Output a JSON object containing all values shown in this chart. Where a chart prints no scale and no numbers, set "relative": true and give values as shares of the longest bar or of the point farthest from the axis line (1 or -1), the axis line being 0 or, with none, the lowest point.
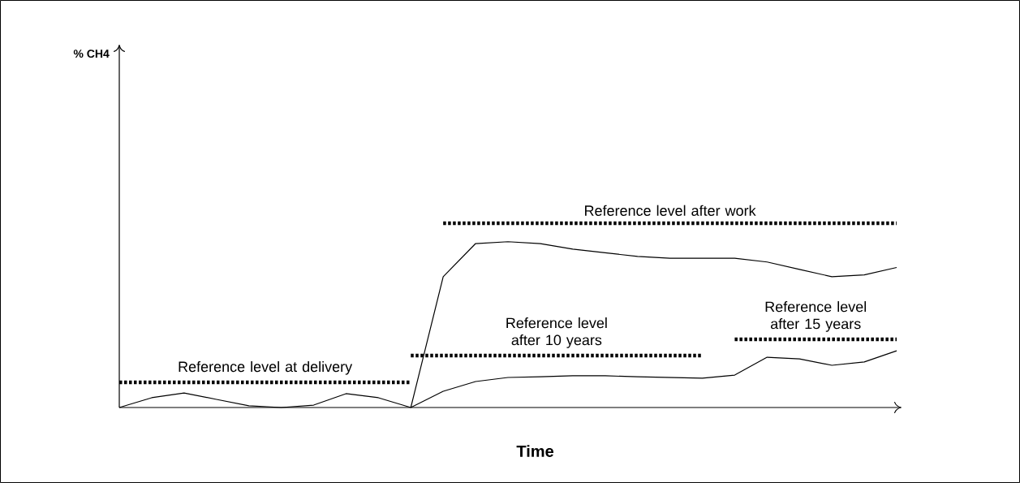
{
  "chart_data": {
    "type": "line",
    "relative": true,
    "xlabel": "Time",
    "annotations": [
      "% CH4"
    ],
    "marker": "none",
    "categories": [
      null,
      null,
      null,
      null,
      null,
      null,
      null,
      null,
      null,
      null,
      null,
      null,
      null,
      null,
      null,
      null,
      null,
      null,
      null,
      null,
      null,
      null,
      null,
      null,
      null
    ],
    "series": [
      {
        "color": "#000000",
        "line_style": "solid",
        "values": [
          0,
          0.053,
          0.079,
          0.044,
          0.009,
          0,
          0.013,
          0.075,
          0.053,
          0,
          null,
          null,
          null,
          null,
          null,
          null,
          null,
          null,
          null,
          null,
          null,
          null,
          null,
          null,
          null
        ]
      },
      {
        "color": "#000000",
        "line_style": "solid",
        "values": [
          null,
          null,
          null,
          null,
          null,
          null,
          null,
          null,
          null,
          0,
          0.71,
          0.89,
          0.9,
          0.89,
          0.86,
          0.84,
          0.82,
          0.81,
          0.81,
          0.81,
          0.79,
          0.75,
          0.71,
          0.72,
          0.76
        ]
      },
      {
        "color": "#000000",
        "line_style": "solid",
        "values": [
          null,
          null,
          null,
          null,
          null,
          null,
          null,
          null,
          null,
          0,
          0.088,
          0.141,
          0.163,
          0.167,
          0.172,
          0.172,
          0.167,
          0.163,
          0.159,
          0.176,
          0.273,
          0.264,
          0.229,
          0.247,
          0.308
        ]
      },
      {
        "name": "Reference level at delivery",
        "color": "#000000",
        "line_style": "dotted",
        "values": [
          0.137,
          0.137,
          0.137,
          0.137,
          0.137,
          0.137,
          0.137,
          0.137,
          0.137,
          0.137,
          null,
          null,
          null,
          null,
          null,
          null,
          null,
          null,
          null,
          null,
          null,
          null,
          null,
          null,
          null
        ]
      },
      {
        "name": "Reference level after work",
        "color": "#000000",
        "line_style": "dotted",
        "values": [
          null,
          null,
          null,
          null,
          null,
          null,
          null,
          null,
          null,
          null,
          1,
          1,
          1,
          1,
          1,
          1,
          1,
          1,
          1,
          1,
          1,
          1,
          1,
          1,
          1
        ]
      },
      {
        "name": "Reference level after 10 years",
        "color": "#000000",
        "line_style": "dotted",
        "values": [
          null,
          null,
          null,
          null,
          null,
          null,
          null,
          null,
          null,
          0.282,
          0.282,
          0.282,
          0.282,
          0.282,
          0.282,
          0.282,
          0.282,
          0.282,
          0.282,
          null,
          null,
          null,
          null,
          null,
          null
        ]
      },
      {
        "name": "Reference level after 15 years",
        "color": "#000000",
        "line_style": "dotted",
        "values": [
          null,
          null,
          null,
          null,
          null,
          null,
          null,
          null,
          null,
          null,
          null,
          null,
          null,
          null,
          null,
          null,
          null,
          null,
          null,
          0.37,
          0.37,
          0.37,
          0.37,
          0.37,
          0.37
        ]
      }
    ]
  }
}
